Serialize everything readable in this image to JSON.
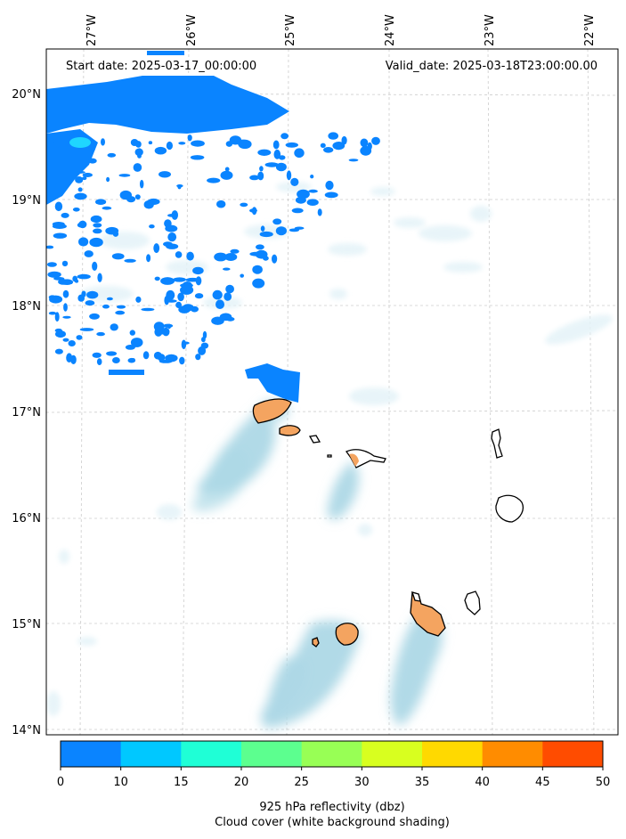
{
  "header": {
    "start_date": "Start date: 2025-03-17_00:00:00",
    "valid_date": "Valid_date: 2025-03-18T23:00:00.00"
  },
  "map": {
    "lon_ticks": [
      "27°W",
      "26°W",
      "25°W",
      "24°W",
      "23°W",
      "22°W"
    ],
    "lat_ticks": [
      "20°N",
      "19°N",
      "18°N",
      "17°N",
      "16°N",
      "15°N",
      "14°N"
    ],
    "lon_range": [
      -27.35,
      -21.85
    ],
    "lat_range": [
      13.95,
      20.42
    ],
    "gridlines": true
  },
  "colorbar": {
    "ticks": [
      "0",
      "10",
      "15",
      "20",
      "25",
      "30",
      "35",
      "40",
      "45",
      "50"
    ],
    "colors": [
      "#0a84ff",
      "#00c8ff",
      "#1fffd6",
      "#5cff8f",
      "#98ff55",
      "#d8ff1f",
      "#ffd900",
      "#ff8c00",
      "#ff4c00"
    ],
    "label_line1": "925 hPa reflectivity (dbz)",
    "label_line2": "Cloud cover (white background shading)"
  },
  "colors": {
    "cloud": "#add8e6",
    "island_fill": "#f4a460",
    "precip_blue": "#0a84ff",
    "precip_cyan": "#1fd6ff"
  }
}
